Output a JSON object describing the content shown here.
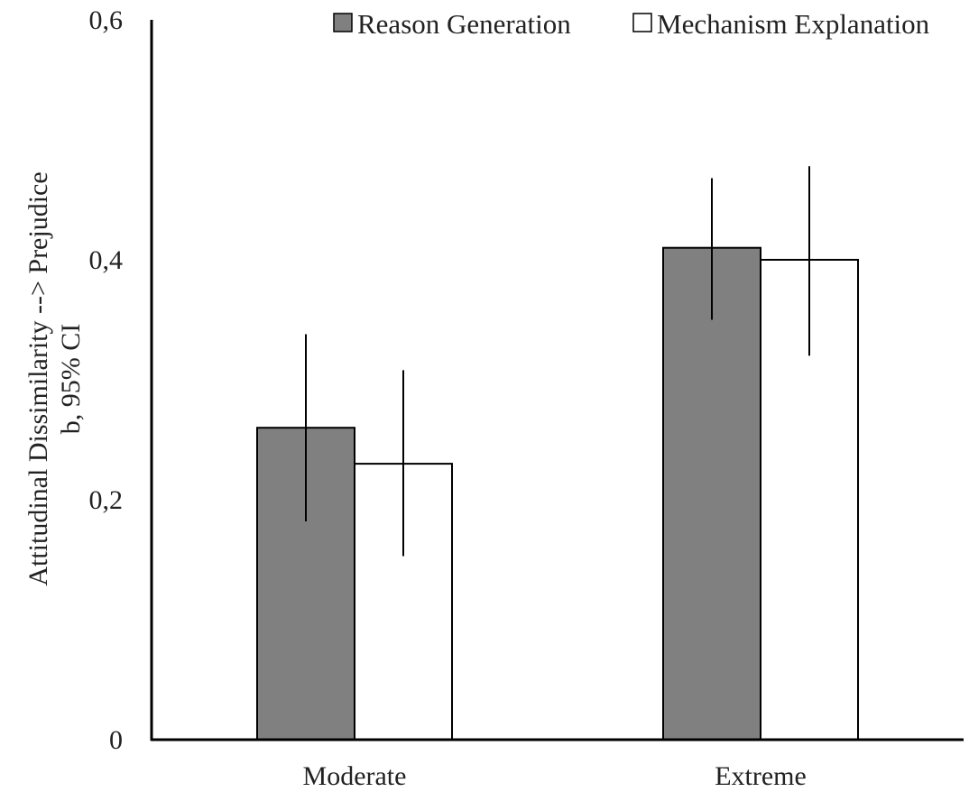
{
  "chart_data": {
    "type": "bar",
    "title": "",
    "xlabel": "",
    "ylabel_lines": [
      "Attitudinal Dissimilarity  --> Prejudice",
      "b, 95% CI"
    ],
    "categories": [
      "Moderate",
      "Extreme"
    ],
    "series": [
      {
        "name": "Reason Generation",
        "color": "#808080",
        "values": [
          0.26,
          0.41
        ],
        "ci_low": [
          0.182,
          0.35
        ],
        "ci_high": [
          0.338,
          0.468
        ]
      },
      {
        "name": "Mechanism Explanation",
        "color": "#ffffff",
        "values": [
          0.23,
          0.4
        ],
        "ci_low": [
          0.153,
          0.32
        ],
        "ci_high": [
          0.308,
          0.478
        ]
      }
    ],
    "ylim": [
      0,
      0.6
    ],
    "yticks": [
      0,
      0.2,
      0.4,
      0.6
    ],
    "ytick_labels": [
      "0",
      "0,2",
      "0,4",
      "0,6"
    ],
    "grid": false,
    "legend_position": "top-right"
  }
}
